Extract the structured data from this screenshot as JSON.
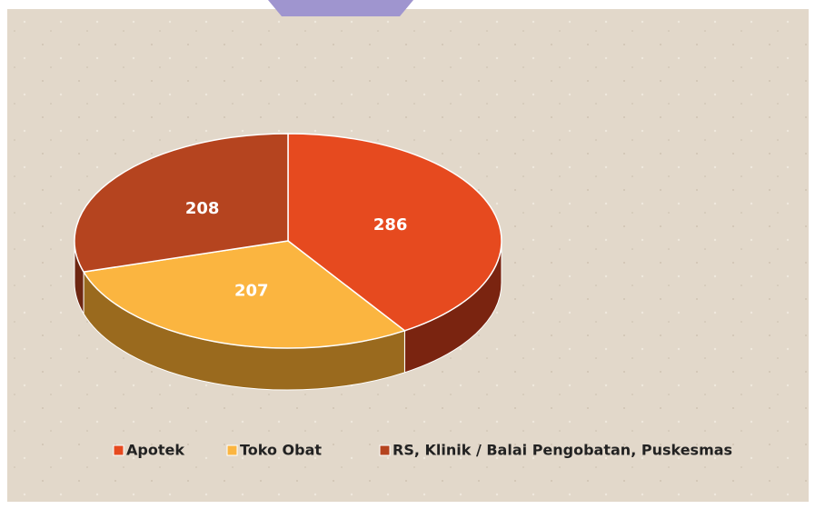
{
  "chart_data": {
    "type": "pie3d",
    "categories": [
      "Apotek",
      "Toko Obat",
      "RS, Klinik / Balai Pengobatan, Puskesmas"
    ],
    "values": [
      286,
      207,
      208
    ],
    "colors": [
      "#e64a1f",
      "#fbb540",
      "#b5441f"
    ],
    "side_colors": [
      "#7a2410",
      "#9a6a1e",
      "#6e2712"
    ],
    "legend": "bottom"
  }
}
